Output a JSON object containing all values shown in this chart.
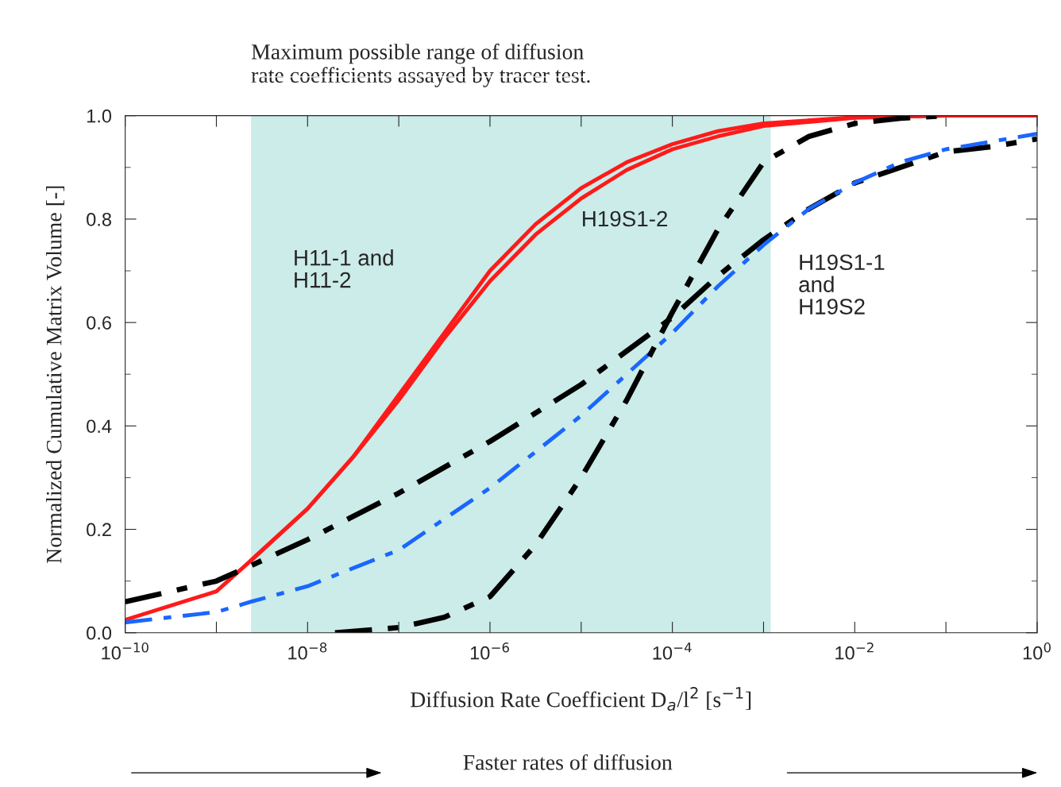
{
  "chart_data": {
    "type": "line",
    "xlabel": "Diffusion Rate Coefficient D$_{a}$/l$^{2}$ [s$^{−1}$]",
    "ylabel": "Normalized Cumulative Matrix Volume [-]",
    "log": "x",
    "xlim": [
      1e-10,
      1
    ],
    "ylim": [
      0,
      1
    ],
    "xticks": [
      {
        "value": 1e-10,
        "label": "10$^{−10}$"
      },
      {
        "value": 1e-09,
        "label": null
      },
      {
        "value": 1e-08,
        "label": "10$^{−8}$"
      },
      {
        "value": 1e-07,
        "label": null
      },
      {
        "value": 1e-06,
        "label": "10$^{−6}$"
      },
      {
        "value": 1e-05,
        "label": null
      },
      {
        "value": 0.0001,
        "label": "10$^{−4}$"
      },
      {
        "value": 0.001,
        "label": null
      },
      {
        "value": 0.01,
        "label": "10$^{−2}$"
      },
      {
        "value": 0.1,
        "label": null
      },
      {
        "value": 1,
        "label": "10$^{0}$"
      }
    ],
    "yticks": [
      {
        "value": 0,
        "label": "0.0"
      },
      {
        "value": 0.2,
        "label": "0.2"
      },
      {
        "value": 0.4,
        "label": "0.4"
      },
      {
        "value": 0.6,
        "label": "0.6"
      },
      {
        "value": 0.8,
        "label": "0.8"
      },
      {
        "value": 1,
        "label": "1.0"
      }
    ],
    "grid": false,
    "legend": false,
    "marker": "none",
    "bands": [
      {
        "axis": "x",
        "from": 2.4e-09,
        "to": 0.0012,
        "color": "#cbece8"
      }
    ],
    "series": [
      {
        "color": "#ff1a1a",
        "line_style": "solid",
        "x": [
          1e-10,
          1e-09,
          2.4e-09,
          1e-08,
          3.16e-08,
          1e-07,
          3.16e-07,
          1e-06,
          3.16e-06,
          1e-05,
          3.16e-05,
          0.0001,
          0.000316,
          0.001,
          0.01,
          0.1,
          1
        ],
        "values": [
          0.025,
          0.08,
          0.14,
          0.24,
          0.34,
          0.46,
          0.58,
          0.7,
          0.79,
          0.86,
          0.91,
          0.945,
          0.97,
          0.985,
          0.997,
          1.0,
          1.0
        ]
      },
      {
        "color": "#ff1a1a",
        "line_style": "solid",
        "x": [
          2.4e-09,
          1e-08,
          3.16e-08,
          1e-07,
          3.16e-07,
          1e-06,
          3.16e-06,
          1e-05,
          3.16e-05,
          0.0001,
          0.000316,
          0.001,
          0.01,
          0.1
        ],
        "values": [
          0.14,
          0.24,
          0.34,
          0.45,
          0.57,
          0.68,
          0.77,
          0.84,
          0.895,
          0.935,
          0.96,
          0.98,
          0.996,
          1.0
        ]
      },
      {
        "color": "#000000",
        "line_style": "dashed",
        "x": [
          1e-10,
          1e-09,
          2.4e-09,
          1e-08,
          1e-07,
          1e-06,
          1e-05,
          0.0001,
          0.000316,
          0.001,
          0.00316,
          0.01,
          0.0316,
          0.1,
          0.316,
          1
        ],
        "values": [
          0.06,
          0.1,
          0.13,
          0.18,
          0.27,
          0.37,
          0.48,
          0.61,
          0.69,
          0.76,
          0.82,
          0.87,
          0.9,
          0.93,
          0.94,
          0.955
        ]
      },
      {
        "color": "#1a66ff",
        "line_style": "dashed",
        "x": [
          1e-10,
          1e-09,
          2.4e-09,
          1e-08,
          1e-07,
          1e-06,
          1e-05,
          0.0001,
          0.000316,
          0.001,
          0.00316,
          0.01,
          0.0316,
          0.1,
          0.316,
          1
        ],
        "values": [
          0.02,
          0.04,
          0.06,
          0.09,
          0.16,
          0.28,
          0.42,
          0.58,
          0.67,
          0.75,
          0.82,
          0.87,
          0.91,
          0.935,
          0.95,
          0.965
        ]
      },
      {
        "color": "#000000",
        "line_style": "dashed",
        "x": [
          2e-08,
          1e-07,
          3.16e-07,
          1e-06,
          3.16e-06,
          1e-05,
          3.16e-05,
          0.0001,
          0.000316,
          0.001,
          0.00316,
          0.01,
          0.0316,
          0.1
        ],
        "values": [
          0.0,
          0.01,
          0.03,
          0.07,
          0.17,
          0.3,
          0.45,
          0.62,
          0.78,
          0.91,
          0.96,
          0.985,
          0.995,
          1.0
        ]
      }
    ],
    "annotations": [
      "Maximum possible range of diffusion\nrate coefficients assayed by tracer test.",
      "Faster rates of diffusion",
      "H11-1 and\nH11-2",
      "H19S1-2",
      "H19S1-1\nand\nH19S2"
    ]
  }
}
